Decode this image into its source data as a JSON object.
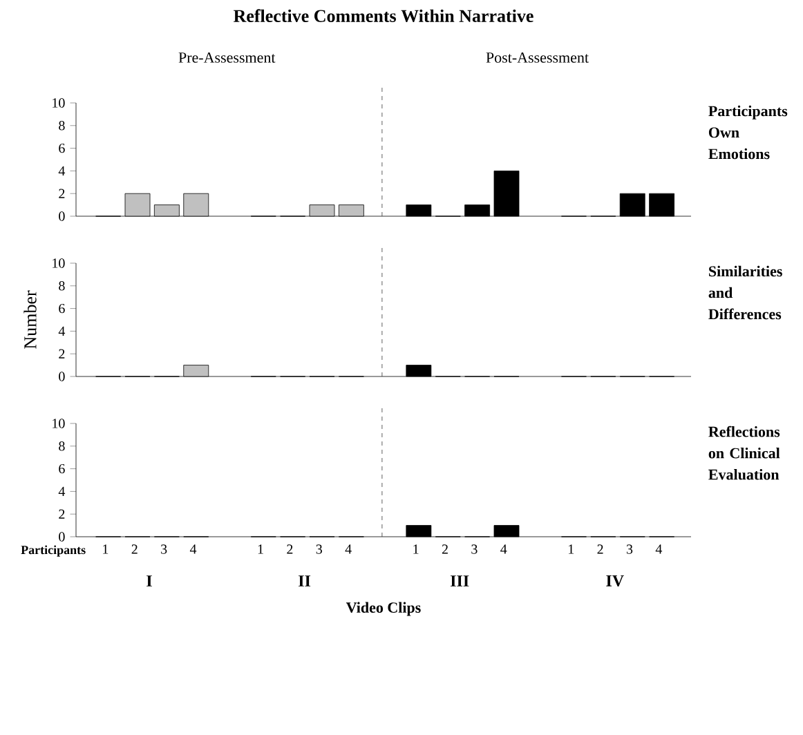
{
  "chart_data": [
    {
      "type": "bar",
      "title": "Reflective Comments Within Narrative",
      "annotations": [
        "Pre-Assessment",
        "Post-Assessment"
      ],
      "y2label": "Participants Own Emotions",
      "categories": [
        null,
        null,
        null,
        null,
        null,
        null,
        null,
        null,
        null,
        null,
        null,
        null,
        null,
        null,
        null,
        null
      ],
      "values": [
        0,
        2,
        1,
        2,
        0,
        0,
        1,
        1,
        1,
        0,
        1,
        4,
        0,
        0,
        2,
        2
      ],
      "colors": [
        "#c0c0c0",
        "#c0c0c0",
        "#c0c0c0",
        "#c0c0c0",
        "#c0c0c0",
        "#c0c0c0",
        "#c0c0c0",
        "#c0c0c0",
        "#000000",
        "#000000",
        "#000000",
        "#000000",
        "#000000",
        "#000000",
        "#000000",
        "#000000"
      ],
      "ylim": [
        0,
        10
      ],
      "yticks": [
        0,
        2,
        4,
        6,
        8,
        10
      ],
      "tick_labels": "y"
    },
    {
      "type": "bar",
      "ylabel": "Number",
      "y2label": "Similarities and Differences",
      "categories": [
        null,
        null,
        null,
        null,
        null,
        null,
        null,
        null,
        null,
        null,
        null,
        null,
        null,
        null,
        null,
        null
      ],
      "values": [
        0,
        0,
        0,
        1,
        0,
        0,
        0,
        0,
        1,
        0,
        0,
        0,
        0,
        0,
        0,
        0
      ],
      "colors": [
        "#c0c0c0",
        "#c0c0c0",
        "#c0c0c0",
        "#c0c0c0",
        "#c0c0c0",
        "#c0c0c0",
        "#c0c0c0",
        "#c0c0c0",
        "#000000",
        "#000000",
        "#000000",
        "#000000",
        "#000000",
        "#000000",
        "#000000",
        "#000000"
      ],
      "ylim": [
        0,
        10
      ],
      "yticks": [
        0,
        2,
        4,
        6,
        8,
        10
      ],
      "tick_labels": "y"
    },
    {
      "type": "bar",
      "xlabel": "Video Clips",
      "y2label": "Reflections on Clinical Evaluation",
      "annotations": [
        "Participants",
        "I",
        "II",
        "III",
        "IV"
      ],
      "categories": [
        "1",
        "2",
        "3",
        "4",
        "1",
        "2",
        "3",
        "4",
        "1",
        "2",
        "3",
        "4",
        "1",
        "2",
        "3",
        "4"
      ],
      "values": [
        0,
        0,
        0,
        0,
        0,
        0,
        0,
        0,
        1,
        0,
        0,
        1,
        0,
        0,
        0,
        0
      ],
      "colors": [
        "#c0c0c0",
        "#c0c0c0",
        "#c0c0c0",
        "#c0c0c0",
        "#c0c0c0",
        "#c0c0c0",
        "#c0c0c0",
        "#c0c0c0",
        "#000000",
        "#000000",
        "#000000",
        "#000000",
        "#000000",
        "#000000",
        "#000000",
        "#000000"
      ],
      "ylim": [
        0,
        10
      ],
      "yticks": [
        0,
        2,
        4,
        6,
        8,
        10
      ]
    }
  ]
}
